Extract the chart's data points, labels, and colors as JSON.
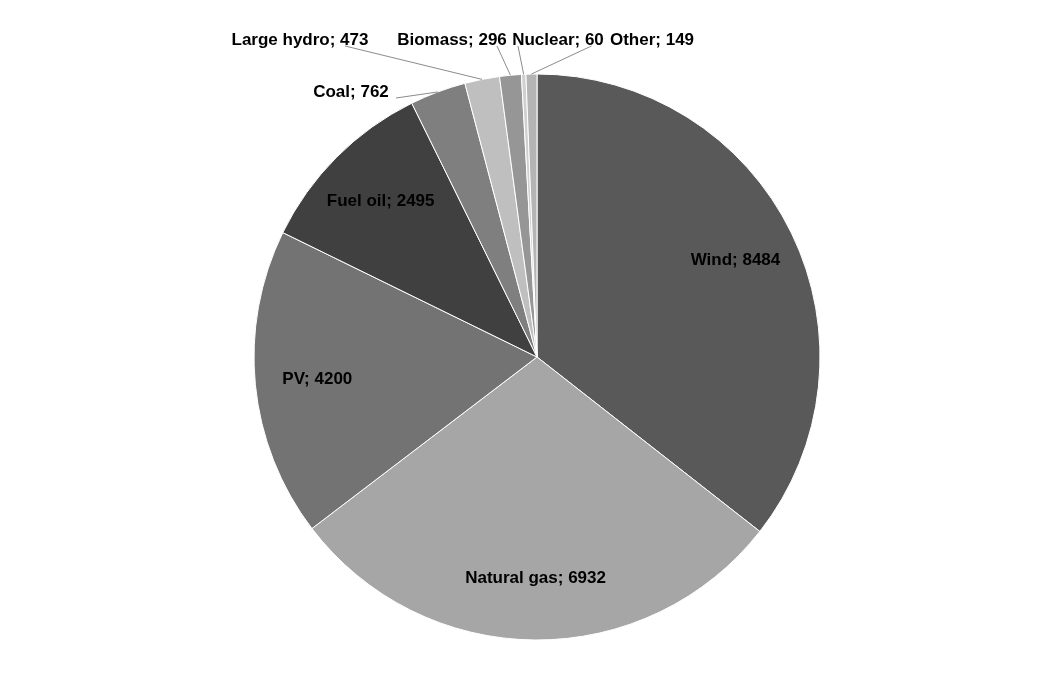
{
  "chart_data": {
    "type": "pie",
    "categories": [
      "Wind; 8484",
      "Natural gas; 6932",
      "PV; 4200",
      "Fuel oil; 2495",
      "Coal; 762",
      "Large hydro; 473",
      "Biomass; 296",
      "Nuclear; 60",
      "Other; 149"
    ],
    "values": [
      8484,
      6932,
      4200,
      2495,
      762,
      473,
      296,
      60,
      149
    ],
    "colors": [
      "#595959",
      "#a6a6a6",
      "#737373",
      "#404040",
      "#7f7f7f",
      "#bfbfbf",
      "#969696",
      "#d0d0d0",
      "#b4b4b4"
    ]
  }
}
